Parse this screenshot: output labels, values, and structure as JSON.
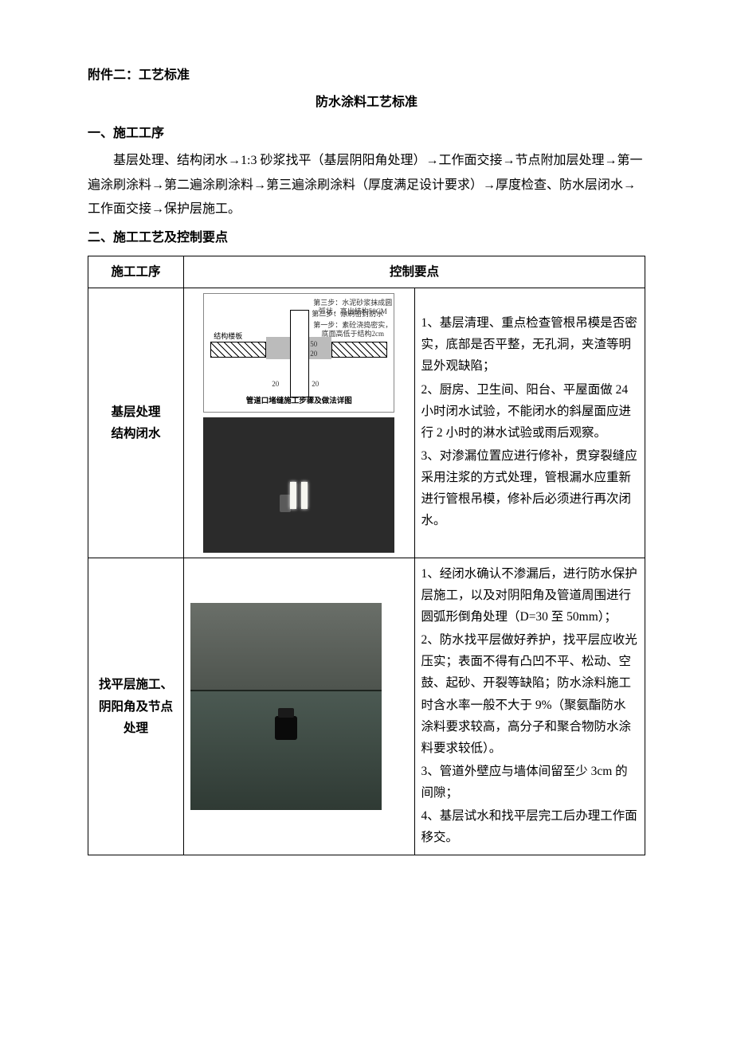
{
  "attachment_title": "附件二：工艺标准",
  "main_title": "防水涂料工艺标准",
  "section1_heading": "一、施工工序",
  "procedure_text": "基层处理、结构闭水→1:3 砂浆找平（基层阴阳角处理）→工作面交接→节点附加层处理→第一遍涂刷涂料→第二遍涂刷涂料→第三遍涂刷涂料（厚度满足设计要求）→厚度检查、防水层闭水→工作面交接→保护层施工。",
  "section2_heading": "二、施工工艺及控制要点",
  "table": {
    "header_step": "施工工序",
    "header_points": "控制要点",
    "rows": [
      {
        "step": "基层处理\n结构闭水",
        "diagram": {
          "note_step3": "第三步：水泥砂浆抹成圆弧状，高出结构50CM",
          "note_step2": "第二步：涂刷密封防水",
          "note_step1": "第一步：素砼浇捣密实，底面高低于结构2cm",
          "dim_50": "50",
          "dim_20a": "20",
          "dim_20b": "20",
          "dim_20c": "20",
          "label_slab": "结构楼板",
          "caption": "管道口堵缝施工步骤及做法详图"
        },
        "points": [
          "1、基层清理、重点检查管根吊模是否密实，底部是否平整，无孔洞，夹渣等明显外观缺陷；",
          "2、厨房、卫生间、阳台、平屋面做 24 小时闭水试验，不能闭水的斜屋面应进行 2 小时的淋水试验或雨后观察。",
          "3、对渗漏位置应进行修补，贯穿裂缝应采用注浆的方式处理，管根漏水应重新进行管根吊模，修补后必须进行再次闭水。"
        ]
      },
      {
        "step": "找平层施工、\n阴阳角及节点\n处理",
        "points": [
          "1、经闭水确认不渗漏后，进行防水保护层施工，以及对阴阳角及管道周围进行圆弧形倒角处理（D=30 至 50mm）；",
          "2、防水找平层做好养护，找平层应收光压实；表面不得有凸凹不平、松动、空鼓、起砂、开裂等缺陷；防水涂料施工时含水率一般不大于 9%（聚氨酯防水涂料要求较高，高分子和聚合物防水涂料要求较低）。",
          "3、管道外壁应与墙体间留至少 3cm 的间隙；",
          "4、基层试水和找平层完工后办理工作面移交。"
        ]
      }
    ]
  },
  "colors": {
    "text": "#000000",
    "background": "#ffffff",
    "border": "#000000",
    "photo1_bg": "#2b2b2b",
    "photo2_bg": "#3c4a44"
  }
}
